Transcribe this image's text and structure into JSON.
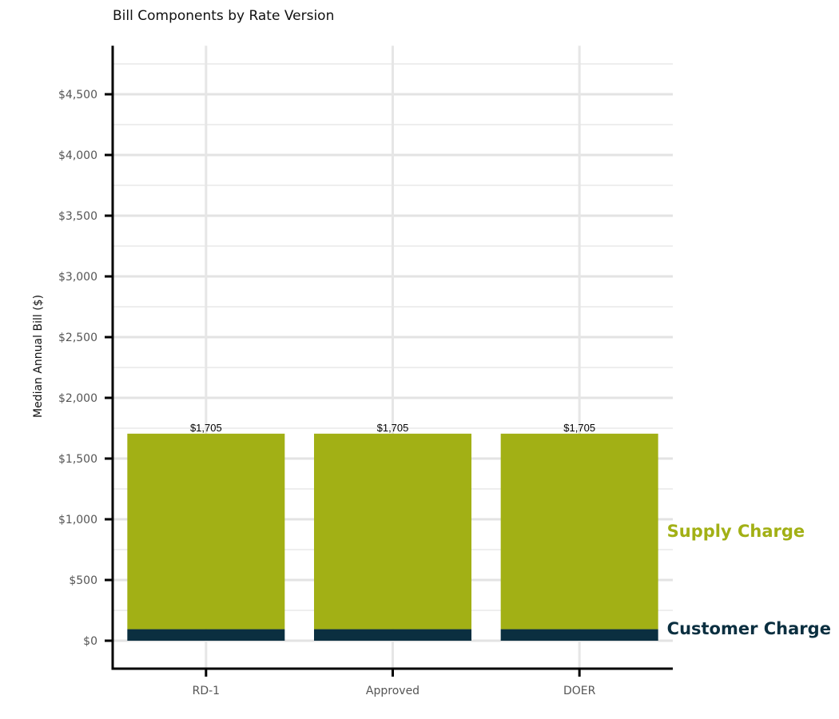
{
  "chart_data": {
    "type": "bar",
    "stacked": true,
    "title": "Bill Components by Rate Version",
    "xlabel": "",
    "ylabel": "Median Annual Bill ($)",
    "categories": [
      "RD-1",
      "Approved",
      "DOER"
    ],
    "series": [
      {
        "name": "Customer Charge",
        "values": [
          95,
          95,
          95
        ],
        "color": "#0b2f40"
      },
      {
        "name": "Supply Charge",
        "values": [
          1610,
          1610,
          1610
        ],
        "color": "#a2b015"
      }
    ],
    "totals": [
      1705,
      1705,
      1705
    ],
    "total_labels": [
      "$1,705",
      "$1,705",
      "$1,705"
    ],
    "ylim": [
      -230,
      4900
    ],
    "y_ticks": [
      0,
      500,
      1000,
      1500,
      2000,
      2500,
      3000,
      3500,
      4000,
      4500
    ],
    "y_tick_labels": [
      "$0",
      "$500",
      "$1,000",
      "$1,500",
      "$2,000",
      "$2,500",
      "$3,000",
      "$3,500",
      "$4,000",
      "$4,500"
    ],
    "grid": true,
    "legend": "direct labels at right"
  }
}
